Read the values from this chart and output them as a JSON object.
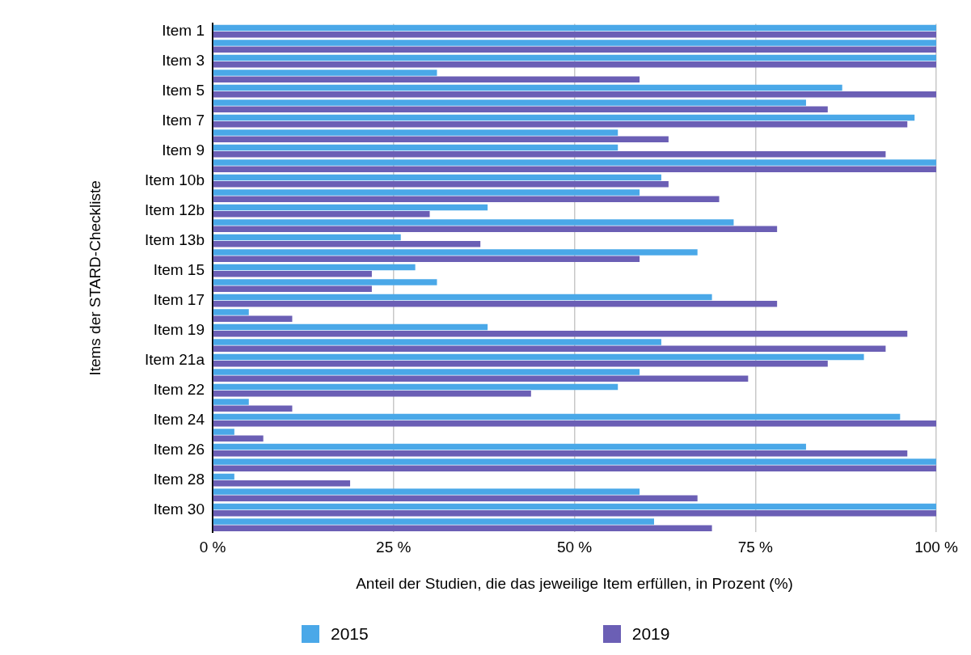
{
  "chart_data": {
    "type": "bar",
    "orientation": "horizontal",
    "xlabel": "Anteil der Studien, die das jeweilige Item erfüllen, in Prozent (%)",
    "ylabel": "Items der STARD-Checkliste",
    "categories": [
      "Item 1",
      null,
      "Item 3",
      null,
      "Item 5",
      null,
      "Item 7",
      null,
      "Item 9",
      null,
      "Item 10b",
      null,
      "Item 12b",
      null,
      "Item 13b",
      null,
      "Item 15",
      null,
      "Item 17",
      null,
      "Item 19",
      null,
      "Item 21a",
      null,
      "Item 22",
      null,
      "Item 24",
      null,
      "Item 26",
      null,
      "Item 28",
      null,
      "Item 30",
      null
    ],
    "series": [
      {
        "name": "2015",
        "color": "#4aa8e8",
        "values": [
          100,
          100,
          100,
          31,
          87,
          82,
          97,
          56,
          56,
          100,
          62,
          59,
          38,
          72,
          26,
          67,
          28,
          31,
          69,
          5,
          38,
          62,
          90,
          59,
          56,
          5,
          95,
          3,
          82,
          100,
          3,
          59,
          100,
          61
        ]
      },
      {
        "name": "2019",
        "color": "#6b5fb5",
        "values": [
          100,
          100,
          100,
          59,
          100,
          85,
          96,
          63,
          93,
          100,
          63,
          70,
          30,
          78,
          37,
          59,
          22,
          22,
          78,
          11,
          96,
          93,
          85,
          74,
          44,
          11,
          100,
          7,
          96,
          100,
          19,
          67,
          100,
          69
        ]
      }
    ],
    "xlim": [
      0,
      100
    ],
    "xticks": [
      {
        "value": 0,
        "label": "0 %"
      },
      {
        "value": 25,
        "label": "25 %"
      },
      {
        "value": 50,
        "label": "50 %"
      },
      {
        "value": 75,
        "label": "75 %"
      },
      {
        "value": 100,
        "label": "100 %"
      }
    ],
    "grid": "x",
    "legend": "bottom"
  }
}
